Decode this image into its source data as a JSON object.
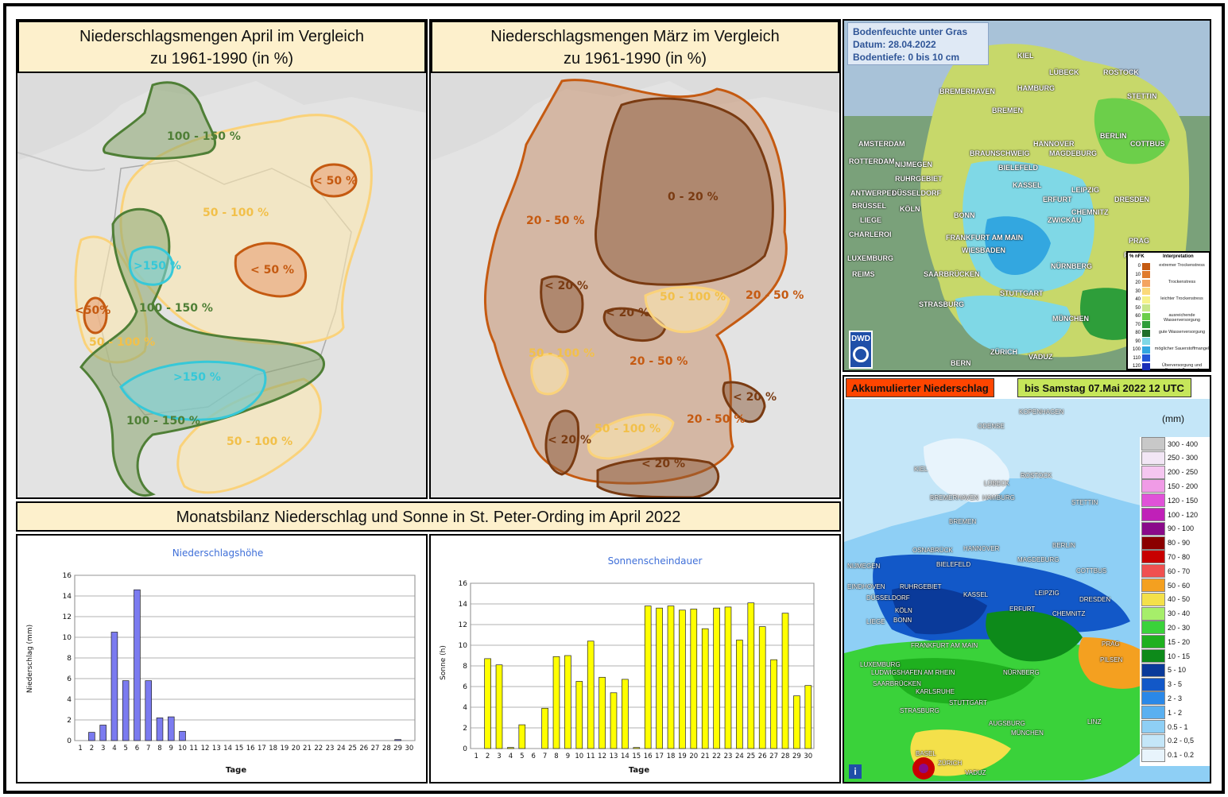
{
  "april_map": {
    "title_line1": "Niederschlagsmengen April im Vergleich",
    "title_line2": "zu 1961-1990 (in %)",
    "labels": [
      "100 - 150 %",
      "< 50 %",
      "50 - 100 %",
      ">150 %",
      "< 50 %",
      "<50%",
      "100 - 150 %",
      "50 - 100 %",
      ">150 %",
      "100 - 150 %",
      "50 - 100 %"
    ]
  },
  "maerz_map": {
    "title_line1": "Niederschlagsmengen März im Vergleich",
    "title_line2": "zu 1961-1990 (in %)",
    "labels": [
      "0 - 20 %",
      "20 - 50 %",
      "< 20 %",
      "50 - 100 %",
      "< 20 %",
      "20 - 50 %",
      "50 - 100 %",
      "20 - 50 %",
      "< 20 %",
      "< 20 %",
      "50 - 100 %",
      "20 - 50 %",
      "< 20 %"
    ]
  },
  "soil_map": {
    "info_line1": "Bodenfeuchte unter Gras",
    "info_line2": "Datum: 28.04.2022",
    "info_line3": "Bodentiefe: 0 bis 10 cm",
    "cities": [
      "KIEL",
      "LÜBECK",
      "ROSTOCK",
      "HAMBURG",
      "BREMERHAVEN",
      "STETTIN",
      "BREMEN",
      "AMSTERDAM",
      "BERLIN",
      "HANNOVER",
      "ROTTERDAM",
      "BRAUNSCHWEIG",
      "MAGDEBURG",
      "NIJMEGEN",
      "BIELEFELD",
      "COTTBUS",
      "RUHRGEBIET",
      "ANTWERPEN",
      "DÜSSELDORF",
      "KASSEL",
      "LEIPZIG",
      "DRESDEN",
      "BRÜSSEL",
      "KÖLN",
      "ERFURT",
      "LIEGE",
      "BONN",
      "ZWICKAU",
      "CHEMNITZ",
      "CHARLEROI",
      "FRANKFURT AM MAIN",
      "PRAG",
      "WIESBADEN",
      "LUXEMBURG",
      "PILSEN",
      "REIMS",
      "SAARBRÜCKEN",
      "NÜRNBERG",
      "STUTTGART",
      "STRASBURG",
      "MÜNCHEN",
      "ZÜRICH",
      "VADUZ",
      "BERN"
    ],
    "logo": "DWD",
    "legend_header_left": "% nFK",
    "legend_header_right": "Interpretation",
    "legend_values": [
      "0",
      "10",
      "20",
      "30",
      "40",
      "50",
      "60",
      "70",
      "80",
      "90",
      "100",
      "110",
      "120"
    ],
    "legend_interp": [
      "extremer Trockenstress",
      "Trockenstress",
      "leichter Trockenstress",
      "ausreichende Wasserversorgung",
      "gute Wasserversorgung",
      "möglicher Sauerstoffmangel",
      "Überversorgung und Sauerstoffmangel"
    ],
    "legend_colors": [
      "#c55a11",
      "#e07b2c",
      "#f4a460",
      "#fbd97a",
      "#f6f28a",
      "#c8e68a",
      "#6ccf4a",
      "#2e9e3a",
      "#1f6f2a",
      "#7fd8e6",
      "#33a7e0",
      "#2458d8",
      "#1a2fb8"
    ]
  },
  "precip_map": {
    "title": "Akkumulierter Niederschlag",
    "date": "bis Samstag 07.Mai 2022 12 UTC",
    "unit": "(mm)",
    "cities": [
      "KOPENHAGEN",
      "ODENSE",
      "KIEL",
      "ROSTOCK",
      "LÜBECK",
      "BREMERHAVEN",
      "HAMBURG",
      "STETTIN",
      "BREMEN",
      "BERLIN",
      "OSNABRÜCK",
      "HANNOVER",
      "NIJMEGEN",
      "BIELEFELD",
      "MAGDEBURG",
      "COTTBUS",
      "EINDHOVEN",
      "RUHRGEBIET",
      "DÜSSELDORF",
      "KASSEL",
      "LEIPZIG",
      "DRESDEN",
      "KÖLN",
      "ERFURT",
      "CHEMNITZ",
      "LIEGE",
      "BONN",
      "FRANKFURT AM MAIN",
      "PRAG",
      "LUXEMBURG",
      "PILSEN",
      "LUDWIGSHAFEN AM RHEIN",
      "NÜRNBERG",
      "SAARBRÜCKEN",
      "KARLSRUHE",
      "STUTTGART",
      "STRASBURG",
      "AUGSBURG",
      "LINZ",
      "MÜNCHEN",
      "BASEL",
      "ZÜRICH",
      "VADUZ"
    ],
    "legend": [
      {
        "label": "300 - 400",
        "color": "#c8c8c8"
      },
      {
        "label": "250 - 300",
        "color": "#f2e6f5"
      },
      {
        "label": "200 - 250",
        "color": "#f5c6f0"
      },
      {
        "label": "150 - 200",
        "color": "#f09be6"
      },
      {
        "label": "120 - 150",
        "color": "#e052d8"
      },
      {
        "label": "100 - 120",
        "color": "#c020b8"
      },
      {
        "label": "90 - 100",
        "color": "#8a0a8a"
      },
      {
        "label": "80 - 90",
        "color": "#8b0000"
      },
      {
        "label": "70 - 80",
        "color": "#c80000"
      },
      {
        "label": "60 - 70",
        "color": "#f05050"
      },
      {
        "label": "50 - 60",
        "color": "#f4a020"
      },
      {
        "label": "40 - 50",
        "color": "#f4e04a"
      },
      {
        "label": "30 - 40",
        "color": "#a6ee6a"
      },
      {
        "label": "20 - 30",
        "color": "#3ad23a"
      },
      {
        "label": "15 - 20",
        "color": "#1fb01f"
      },
      {
        "label": "10 - 15",
        "color": "#0d8a1a"
      },
      {
        "label": "5 - 10",
        "color": "#0a3a9a"
      },
      {
        "label": "3 - 5",
        "color": "#1258c8"
      },
      {
        "label": "2 - 3",
        "color": "#2a88e8"
      },
      {
        "label": "1 - 2",
        "color": "#5ab0f0"
      },
      {
        "label": "0.5 - 1",
        "color": "#8ecff5"
      },
      {
        "label": "0.2 - 0,5",
        "color": "#c4e6f8"
      },
      {
        "label": "0.1 - 0.2",
        "color": "#e8f4fc"
      }
    ]
  },
  "bilanz_title": "Monatsbilanz Niederschlag und Sonne in St. Peter-Ording im April 2022",
  "chart_data": [
    {
      "type": "bar",
      "title": "Niederschlagshöhe",
      "xlabel": "Tage",
      "ylabel": "Niederschlag (mm)",
      "ylim": [
        0,
        16
      ],
      "yticks": [
        0,
        2,
        4,
        6,
        8,
        10,
        12,
        14,
        16
      ],
      "categories": [
        "1",
        "2",
        "3",
        "4",
        "5",
        "6",
        "7",
        "8",
        "9",
        "10",
        "11",
        "12",
        "13",
        "14",
        "15",
        "16",
        "17",
        "18",
        "19",
        "20",
        "21",
        "22",
        "23",
        "24",
        "25",
        "26",
        "27",
        "28",
        "29",
        "30"
      ],
      "values": [
        0,
        0.8,
        1.5,
        10.5,
        5.8,
        14.6,
        5.8,
        2.2,
        2.3,
        0.9,
        0,
        0,
        0,
        0,
        0,
        0,
        0,
        0,
        0,
        0,
        0,
        0,
        0,
        0,
        0,
        0,
        0,
        0,
        0.1,
        0
      ],
      "color": "#7b7bf0",
      "grid": true
    },
    {
      "type": "bar",
      "title": "Sonnenscheindauer",
      "xlabel": "Tage",
      "ylabel": "Sonne (h)",
      "ylim": [
        0,
        16
      ],
      "yticks": [
        0,
        2,
        4,
        6,
        8,
        10,
        12,
        14,
        16
      ],
      "categories": [
        "1",
        "2",
        "3",
        "4",
        "5",
        "6",
        "7",
        "8",
        "9",
        "10",
        "11",
        "12",
        "13",
        "14",
        "15",
        "16",
        "17",
        "18",
        "19",
        "20",
        "21",
        "22",
        "23",
        "24",
        "25",
        "26",
        "27",
        "28",
        "29",
        "30"
      ],
      "values": [
        0,
        8.7,
        8.1,
        0.1,
        2.3,
        0,
        3.9,
        8.9,
        9.0,
        6.5,
        10.4,
        6.9,
        5.4,
        6.7,
        0.1,
        13.8,
        13.6,
        13.8,
        13.4,
        13.5,
        11.6,
        13.6,
        13.7,
        10.5,
        14.1,
        11.8,
        8.6,
        13.1,
        5.1,
        6.1
      ],
      "color": "#ffff00",
      "grid": true
    }
  ]
}
